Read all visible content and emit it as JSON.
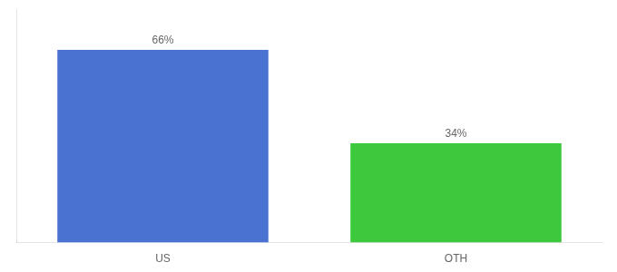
{
  "chart_data": {
    "type": "bar",
    "categories": [
      "US",
      "OTH"
    ],
    "values": [
      66,
      34
    ],
    "value_labels": [
      "66%",
      "34%"
    ],
    "colors": [
      "#4a72d1",
      "#3dc93d"
    ],
    "ylim": [
      0,
      80
    ],
    "data_labels": true,
    "tick_labels": "x",
    "grid": false
  }
}
